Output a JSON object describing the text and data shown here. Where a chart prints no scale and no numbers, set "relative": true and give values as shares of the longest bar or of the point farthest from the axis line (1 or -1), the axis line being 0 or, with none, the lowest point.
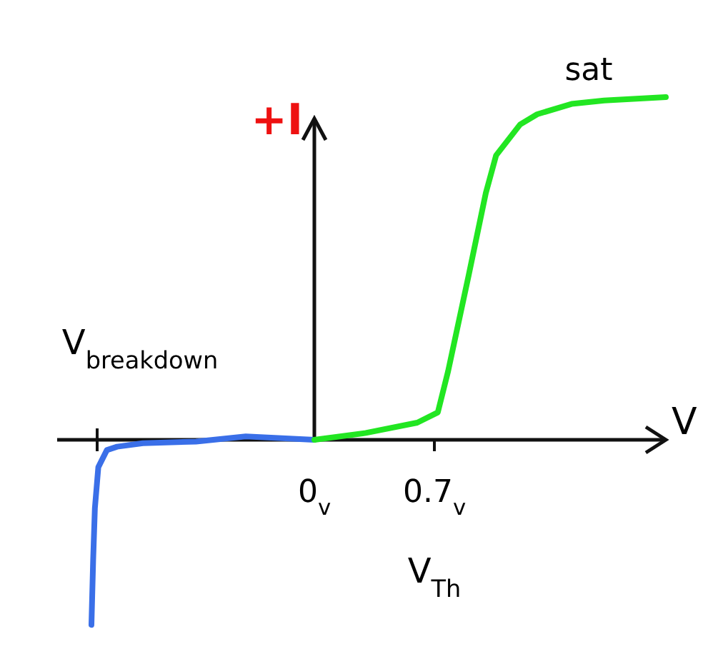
{
  "chart_data": {
    "type": "line",
    "relative": true,
    "xlabel": "V",
    "ylabel": "+I",
    "xlim": [
      -1.5,
      2.05
    ],
    "xticks": [
      {
        "value": 0,
        "label": "0$_{v}$"
      },
      {
        "value": 0.7,
        "label": "0.7$_{v}$"
      }
    ],
    "annotations": [
      {
        "text": "sat",
        "x": 1.6,
        "y": 1.0
      },
      "V$_{breakdown}$",
      "V$_{Th}$"
    ],
    "marker": "none",
    "line_style": "solid",
    "grid": false,
    "series": [
      {
        "color": "#3a6fe8",
        "x": [
          0,
          -0.4,
          -0.69,
          -1.0,
          -1.15,
          -1.21,
          -1.26,
          -1.28,
          -1.29,
          -1.3
        ],
        "values": [
          0,
          0.01,
          -0.005,
          -0.01,
          -0.02,
          -0.03,
          -0.08,
          -0.2,
          -0.35,
          -0.54
        ]
      },
      {
        "color": "#22e622",
        "x": [
          0,
          0.3,
          0.6,
          0.72,
          0.78,
          0.9,
          1.0,
          1.06,
          1.2,
          1.3,
          1.5,
          1.69,
          2.05
        ],
        "values": [
          0,
          0.02,
          0.05,
          0.08,
          0.2,
          0.48,
          0.72,
          0.83,
          0.92,
          0.95,
          0.98,
          0.99,
          1.0
        ]
      }
    ]
  }
}
